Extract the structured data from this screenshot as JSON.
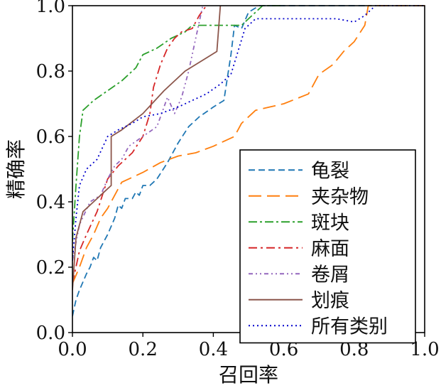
{
  "chart_data": {
    "type": "line",
    "title": "",
    "xlabel": "召回率",
    "ylabel": "精确率",
    "xlim": [
      0,
      1
    ],
    "ylim": [
      0,
      1
    ],
    "xticks": [
      "0.0",
      "0.2",
      "0.4",
      "0.6",
      "0.8",
      "1.0"
    ],
    "yticks": [
      "0.0",
      "0.2",
      "0.4",
      "0.6",
      "0.8",
      "1.0"
    ],
    "grid": false,
    "legend_position": "lower-right",
    "series": [
      {
        "name": "龟裂",
        "color": "#1f77b4",
        "dash": "9,5",
        "points": [
          [
            0.0,
            0.05
          ],
          [
            0.01,
            0.1
          ],
          [
            0.02,
            0.13
          ],
          [
            0.04,
            0.18
          ],
          [
            0.05,
            0.2
          ],
          [
            0.06,
            0.23
          ],
          [
            0.07,
            0.22
          ],
          [
            0.08,
            0.26
          ],
          [
            0.1,
            0.3
          ],
          [
            0.12,
            0.35
          ],
          [
            0.13,
            0.39
          ],
          [
            0.14,
            0.38
          ],
          [
            0.15,
            0.41
          ],
          [
            0.17,
            0.41
          ],
          [
            0.18,
            0.43
          ],
          [
            0.19,
            0.42
          ],
          [
            0.2,
            0.45
          ],
          [
            0.22,
            0.45
          ],
          [
            0.24,
            0.47
          ],
          [
            0.27,
            0.52
          ],
          [
            0.3,
            0.58
          ],
          [
            0.33,
            0.63
          ],
          [
            0.36,
            0.66
          ],
          [
            0.4,
            0.69
          ],
          [
            0.43,
            0.71
          ],
          [
            0.44,
            0.78
          ],
          [
            0.45,
            0.85
          ],
          [
            0.46,
            0.94
          ],
          [
            0.48,
            0.93
          ],
          [
            0.5,
            0.98
          ],
          [
            0.53,
            1.0
          ],
          [
            0.6,
            1.0
          ],
          [
            0.85,
            1.0
          ]
        ]
      },
      {
        "name": "夹杂物",
        "color": "#ff7f0e",
        "dash": "18,8",
        "points": [
          [
            0.0,
            0.15
          ],
          [
            0.02,
            0.2
          ],
          [
            0.04,
            0.26
          ],
          [
            0.06,
            0.3
          ],
          [
            0.08,
            0.35
          ],
          [
            0.1,
            0.38
          ],
          [
            0.12,
            0.42
          ],
          [
            0.14,
            0.46
          ],
          [
            0.16,
            0.47
          ],
          [
            0.2,
            0.49
          ],
          [
            0.25,
            0.52
          ],
          [
            0.3,
            0.54
          ],
          [
            0.35,
            0.55
          ],
          [
            0.4,
            0.57
          ],
          [
            0.46,
            0.6
          ],
          [
            0.48,
            0.64
          ],
          [
            0.52,
            0.68
          ],
          [
            0.6,
            0.7
          ],
          [
            0.67,
            0.73
          ],
          [
            0.7,
            0.79
          ],
          [
            0.74,
            0.82
          ],
          [
            0.77,
            0.86
          ],
          [
            0.8,
            0.89
          ],
          [
            0.83,
            0.94
          ],
          [
            0.84,
            1.0
          ],
          [
            1.0,
            1.0
          ]
        ]
      },
      {
        "name": "斑块",
        "color": "#2ca02c",
        "dash": "12,4,3,4",
        "points": [
          [
            0.0,
            0.28
          ],
          [
            0.01,
            0.45
          ],
          [
            0.02,
            0.6
          ],
          [
            0.03,
            0.68
          ],
          [
            0.06,
            0.71
          ],
          [
            0.1,
            0.74
          ],
          [
            0.14,
            0.77
          ],
          [
            0.18,
            0.81
          ],
          [
            0.2,
            0.85
          ],
          [
            0.24,
            0.87
          ],
          [
            0.28,
            0.9
          ],
          [
            0.32,
            0.92
          ],
          [
            0.34,
            0.94
          ],
          [
            0.42,
            0.94
          ],
          [
            0.48,
            0.94
          ],
          [
            0.5,
            0.96
          ],
          [
            0.54,
            1.0
          ],
          [
            0.6,
            1.0
          ]
        ]
      },
      {
        "name": "麻面",
        "color": "#d62728",
        "dash": "12,5,3,5",
        "points": [
          [
            0.0,
            0.15
          ],
          [
            0.02,
            0.25
          ],
          [
            0.04,
            0.3
          ],
          [
            0.07,
            0.37
          ],
          [
            0.1,
            0.47
          ],
          [
            0.13,
            0.51
          ],
          [
            0.15,
            0.53
          ],
          [
            0.17,
            0.55
          ],
          [
            0.2,
            0.6
          ],
          [
            0.22,
            0.67
          ],
          [
            0.23,
            0.75
          ],
          [
            0.25,
            0.82
          ],
          [
            0.27,
            0.87
          ],
          [
            0.29,
            0.9
          ],
          [
            0.31,
            0.92
          ],
          [
            0.34,
            0.93
          ],
          [
            0.36,
            0.97
          ],
          [
            0.38,
            1.0
          ]
        ]
      },
      {
        "name": "卷屑",
        "color": "#9467bd",
        "dash": "6,4,2,4,2,4",
        "points": [
          [
            0.0,
            0.22
          ],
          [
            0.02,
            0.33
          ],
          [
            0.05,
            0.4
          ],
          [
            0.08,
            0.42
          ],
          [
            0.1,
            0.47
          ],
          [
            0.12,
            0.51
          ],
          [
            0.14,
            0.53
          ],
          [
            0.16,
            0.57
          ],
          [
            0.2,
            0.6
          ],
          [
            0.24,
            0.63
          ],
          [
            0.27,
            0.72
          ],
          [
            0.29,
            0.67
          ],
          [
            0.31,
            0.72
          ],
          [
            0.33,
            0.8
          ],
          [
            0.35,
            0.9
          ],
          [
            0.37,
            1.0
          ]
        ]
      },
      {
        "name": "划痕",
        "color": "#8c564b",
        "dash": "",
        "points": [
          [
            0.0,
            0.13
          ],
          [
            0.01,
            0.29
          ],
          [
            0.03,
            0.37
          ],
          [
            0.06,
            0.4
          ],
          [
            0.09,
            0.43
          ],
          [
            0.11,
            0.45
          ],
          [
            0.11,
            0.6
          ],
          [
            0.14,
            0.62
          ],
          [
            0.2,
            0.67
          ],
          [
            0.26,
            0.74
          ],
          [
            0.32,
            0.8
          ],
          [
            0.38,
            0.84
          ],
          [
            0.41,
            0.86
          ],
          [
            0.42,
            1.0
          ]
        ]
      },
      {
        "name": "所有类别",
        "color": "#0000cc",
        "dash": "2,4",
        "points": [
          [
            0.0,
            0.22
          ],
          [
            0.01,
            0.35
          ],
          [
            0.02,
            0.45
          ],
          [
            0.04,
            0.5
          ],
          [
            0.07,
            0.53
          ],
          [
            0.1,
            0.6
          ],
          [
            0.13,
            0.62
          ],
          [
            0.17,
            0.64
          ],
          [
            0.2,
            0.66
          ],
          [
            0.25,
            0.67
          ],
          [
            0.3,
            0.69
          ],
          [
            0.34,
            0.71
          ],
          [
            0.38,
            0.73
          ],
          [
            0.42,
            0.76
          ],
          [
            0.45,
            0.79
          ],
          [
            0.47,
            0.86
          ],
          [
            0.49,
            0.93
          ],
          [
            0.52,
            0.96
          ],
          [
            0.6,
            0.96
          ],
          [
            0.7,
            0.96
          ],
          [
            0.75,
            0.96
          ],
          [
            0.8,
            0.95
          ],
          [
            0.83,
            0.97
          ],
          [
            0.86,
            1.0
          ],
          [
            1.0,
            1.0
          ]
        ]
      }
    ]
  }
}
